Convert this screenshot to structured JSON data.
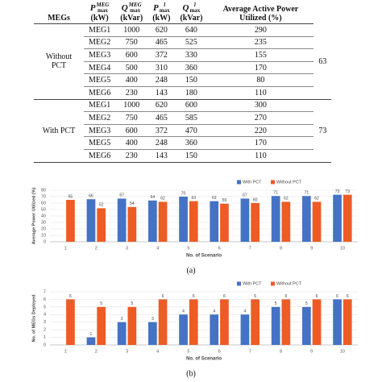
{
  "table": {
    "headers": [
      {
        "text": "MEGs"
      },
      {
        "symbol": "P",
        "sup": "MEG",
        "sub": "max",
        "unit": "(kW)"
      },
      {
        "symbol": "Q",
        "sup": "MEG",
        "sub": "max",
        "unit": "(kVar)"
      },
      {
        "symbol": "P",
        "sup": "l",
        "sub": "max",
        "unit": "(kW)"
      },
      {
        "symbol": "Q",
        "sup": "l",
        "sub": "max",
        "unit": "(kVar)"
      },
      {
        "text": "Average Active Power Utilized (%)"
      }
    ],
    "groups": [
      {
        "label": "Without PCT",
        "average": 63,
        "rows": [
          [
            "MEG1",
            1000,
            620,
            640,
            290
          ],
          [
            "MEG2",
            750,
            465,
            525,
            235
          ],
          [
            "MEG3",
            600,
            372,
            330,
            155
          ],
          [
            "MEG4",
            500,
            310,
            360,
            170
          ],
          [
            "MEG5",
            400,
            248,
            150,
            80
          ],
          [
            "MEG6",
            230,
            143,
            180,
            110
          ]
        ]
      },
      {
        "label": "With PCT",
        "average": 73,
        "rows": [
          [
            "MEG1",
            1000,
            620,
            600,
            300
          ],
          [
            "MEG2",
            750,
            465,
            585,
            270
          ],
          [
            "MEG3",
            600,
            372,
            470,
            220
          ],
          [
            "MEG5",
            400,
            248,
            360,
            170
          ],
          [
            "MEG6",
            230,
            143,
            150,
            110
          ]
        ]
      }
    ]
  },
  "chart_data": [
    {
      "type": "bar",
      "caption": "(a)",
      "x_label": "No. of Scenario",
      "y_label": "Average Power Utilized (%)",
      "categories": [
        "1",
        "2",
        "3",
        "4",
        "5",
        "6",
        "7",
        "8",
        "9",
        "10"
      ],
      "series": [
        {
          "name": "With PCT",
          "color": "#4472c4",
          "values": [
            null,
            66,
            67,
            64,
            70,
            63,
            67,
            71,
            71,
            73
          ]
        },
        {
          "name": "Without PCT",
          "color": "#ed5c24",
          "values": [
            65,
            52,
            54,
            62,
            63,
            59,
            60,
            62,
            62,
            73
          ]
        }
      ],
      "ylim": [
        0,
        80
      ],
      "yticks": [
        0,
        10,
        20,
        30,
        40,
        50,
        60,
        70,
        80
      ],
      "grid": true,
      "legend": "top-right"
    },
    {
      "type": "bar",
      "caption": "(b)",
      "x_label": "No. of Scenario",
      "y_label": "No. of MEGs Deployed",
      "categories": [
        "1",
        "2",
        "3",
        "4",
        "5",
        "6",
        "7",
        "8",
        "9",
        "10"
      ],
      "series": [
        {
          "name": "With PCT",
          "color": "#4472c4",
          "values": [
            null,
            1,
            3,
            3,
            4,
            4,
            4,
            5,
            5,
            6
          ]
        },
        {
          "name": "Without PCT",
          "color": "#ed5c24",
          "values": [
            6,
            5,
            5,
            6,
            6,
            6,
            6,
            6,
            6,
            6
          ]
        }
      ],
      "ylim": [
        0,
        7
      ],
      "yticks": [
        0,
        1,
        2,
        3,
        4,
        5,
        6,
        7
      ],
      "grid": true,
      "legend": "top-right"
    }
  ]
}
